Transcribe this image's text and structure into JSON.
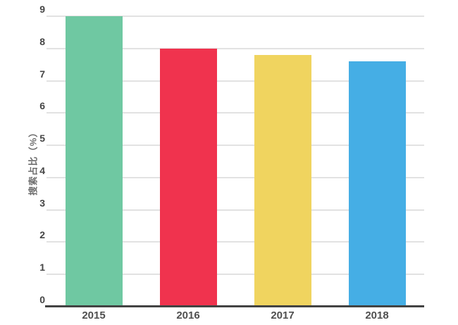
{
  "chart_data": {
    "type": "bar",
    "title": "",
    "categories": [
      "2015",
      "2016",
      "2017",
      "2018"
    ],
    "values": [
      9,
      8,
      7.8,
      7.6
    ],
    "bar_colors": [
      "#6FC8A2",
      "#F0334E",
      "#F0D45F",
      "#45AEE5"
    ],
    "xlabel": "",
    "ylabel": "搜索占比（%）",
    "ylim": [
      0,
      9
    ],
    "yticks": [
      0,
      1,
      2,
      3,
      4,
      5,
      6,
      7,
      8,
      9
    ],
    "grid": "horizontal",
    "legend_position": "none",
    "background_color": "#ffffff",
    "gridline_color": "#e2e2e2",
    "axis_line_color": "#434343",
    "tick_label_color": "#454545",
    "x_label_color": "#4f4f4f",
    "y_title_color": "#6e6e6e"
  }
}
